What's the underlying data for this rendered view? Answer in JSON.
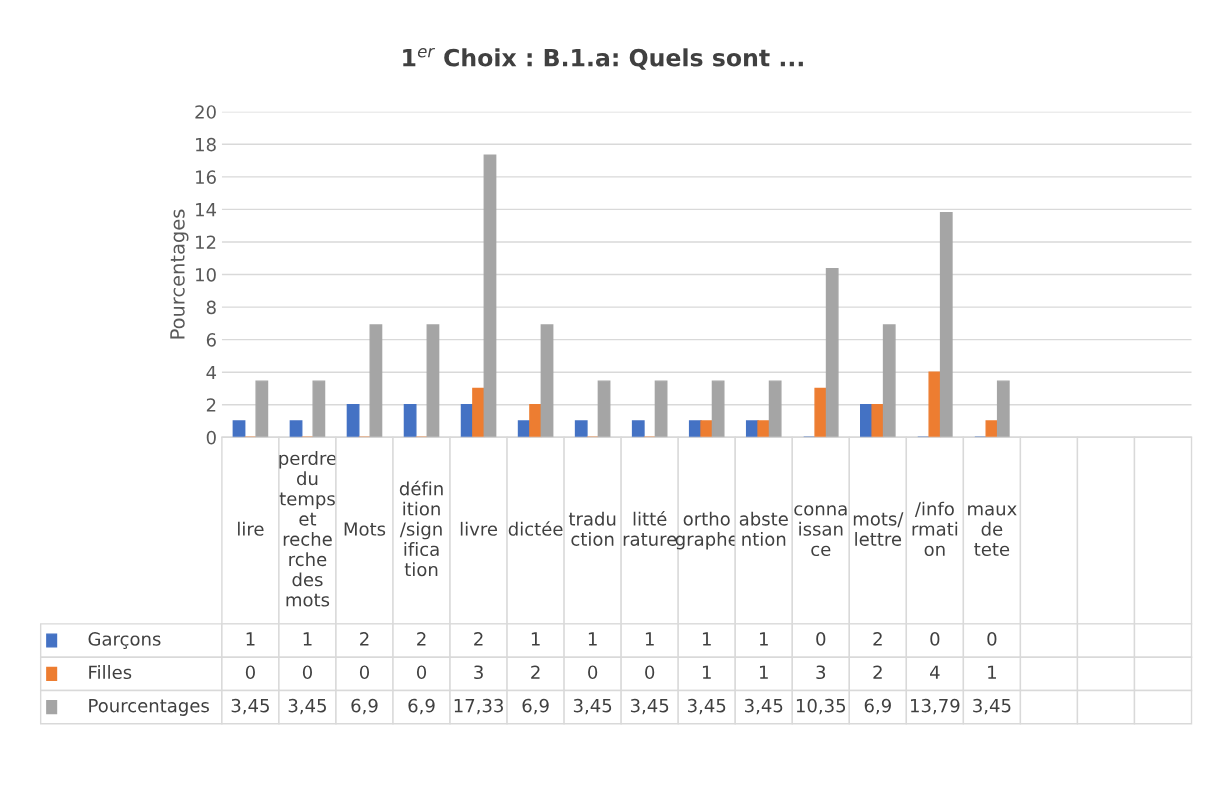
{
  "chart_data": {
    "type": "bar",
    "title": "1$^{er}$ Choix : B.1.a: Quels sont ...",
    "ylabel": "Pourcentages",
    "categories": [
      "lire",
      "perdre du temps et recherche des mots",
      "Mots",
      "définition/signification",
      "livre",
      "dictée",
      "traduction",
      "littérature",
      "orthographe",
      "abstention",
      "connaissance",
      "mots/lettre",
      "/information",
      "maux de tete",
      null,
      null,
      null
    ],
    "series": [
      {
        "name": "Garçons",
        "color": "#4472c4",
        "values": [
          1,
          1,
          2,
          2,
          2,
          1,
          1,
          1,
          1,
          1,
          0,
          2,
          0,
          0,
          null,
          null,
          null
        ],
        "value_labels": [
          "1",
          "1",
          "2",
          "2",
          "2",
          "1",
          "1",
          "1",
          "1",
          "1",
          "0",
          "2",
          "0",
          "0",
          null,
          null,
          null
        ]
      },
      {
        "name": "Filles",
        "color": "#ed7d31",
        "values": [
          0,
          0,
          0,
          0,
          3,
          2,
          0,
          0,
          1,
          1,
          3,
          2,
          4,
          1,
          null,
          null,
          null
        ],
        "value_labels": [
          "0",
          "0",
          "0",
          "0",
          "3",
          "2",
          "0",
          "0",
          "1",
          "1",
          "3",
          "2",
          "4",
          "1",
          null,
          null,
          null
        ]
      },
      {
        "name": "Pourcentages",
        "color": "#a5a5a5",
        "values": [
          3.45,
          3.45,
          6.9,
          6.9,
          17.33,
          6.9,
          3.45,
          3.45,
          3.45,
          3.45,
          10.35,
          6.9,
          13.79,
          3.45,
          null,
          null,
          null
        ],
        "value_labels": [
          "3,45",
          "3,45",
          "6,9",
          "6,9",
          "17,33",
          "6,9",
          "3,45",
          "3,45",
          "3,45",
          "3,45",
          "10,35",
          "6,9",
          "13,79",
          "3,45",
          null,
          null,
          null
        ]
      }
    ],
    "ylim": [
      0,
      20
    ],
    "yticks": [
      0,
      2,
      4,
      6,
      8,
      10,
      12,
      14,
      16,
      18,
      20
    ],
    "grid": "y",
    "data_labels": true,
    "legend": "bottom left"
  }
}
